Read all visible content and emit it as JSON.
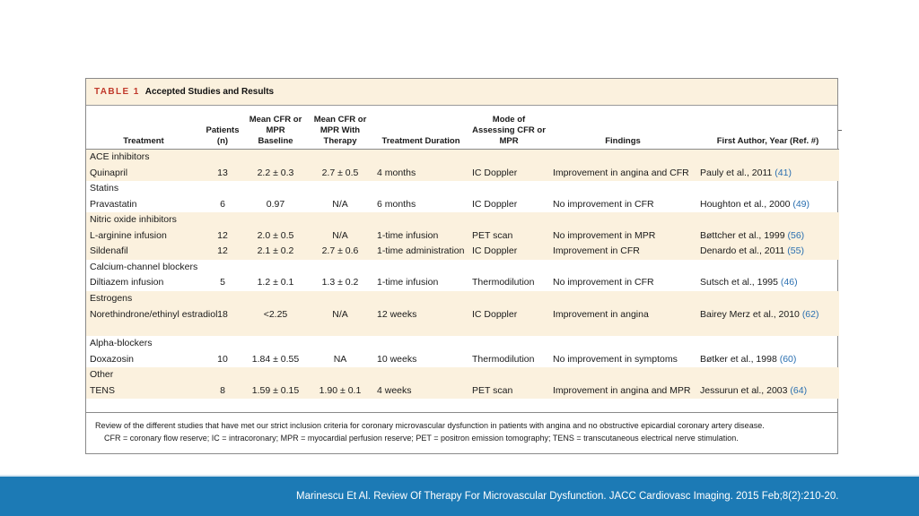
{
  "table": {
    "label": "TABLE 1",
    "title": "Accepted Studies and Results",
    "headers": {
      "treatment": "Treatment",
      "patients": "Patients (n)",
      "cfr_baseline": "Mean CFR or MPR Baseline",
      "cfr_therapy": "Mean CFR or MPR With Therapy",
      "duration": "Treatment Duration",
      "mode": "Mode of Assessing CFR or MPR",
      "findings": "Findings",
      "author": "First Author, Year (Ref. #)"
    },
    "groups": [
      {
        "name": "ACE inhibitors",
        "rows": [
          {
            "treatment": "Quinapril",
            "patients": "13",
            "baseline": "2.2 ± 0.3",
            "therapy": "2.7 ± 0.5",
            "duration": "4 months",
            "mode": "IC Doppler",
            "findings": "Improvement in angina and CFR",
            "author": "Pauly et al., 2011",
            "ref": "(41)"
          }
        ]
      },
      {
        "name": "Statins",
        "rows": [
          {
            "treatment": "Pravastatin",
            "patients": "6",
            "baseline": "0.97",
            "therapy": "N/A",
            "duration": "6 months",
            "mode": "IC Doppler",
            "findings": "No improvement in CFR",
            "author": "Houghton et al., 2000",
            "ref": "(49)"
          }
        ]
      },
      {
        "name": "Nitric oxide inhibitors",
        "rows": [
          {
            "treatment": "L-arginine infusion",
            "patients": "12",
            "baseline": "2.0 ± 0.5",
            "therapy": "N/A",
            "duration": "1-time infusion",
            "mode": "PET scan",
            "findings": "No improvement in MPR",
            "author": "Bøttcher et al., 1999",
            "ref": "(56)"
          },
          {
            "treatment": "Sildenafil",
            "patients": "12",
            "baseline": "2.1 ± 0.2",
            "therapy": "2.7 ± 0.6",
            "duration": "1-time administration",
            "mode": "IC Doppler",
            "findings": "Improvement in CFR",
            "author": "Denardo et al., 2011",
            "ref": "(55)"
          }
        ]
      },
      {
        "name": "Calcium-channel blockers",
        "rows": [
          {
            "treatment": "Diltiazem infusion",
            "patients": "5",
            "baseline": "1.2 ± 0.1",
            "therapy": "1.3 ± 0.2",
            "duration": "1-time infusion",
            "mode": "Thermodilution",
            "findings": "No improvement in CFR",
            "author": "Sutsch et al., 1995",
            "ref": "(46)"
          }
        ]
      },
      {
        "name": "Estrogens",
        "rows": [
          {
            "treatment": "Norethindrone/ethinyl estradiol",
            "patients": "18",
            "baseline": "<2.25",
            "therapy": "N/A",
            "duration": "12 weeks",
            "mode": "IC Doppler",
            "findings": "Improvement in angina",
            "author": "Bairey Merz et al., 2010",
            "ref": "(62)"
          }
        ]
      },
      {
        "name": "Alpha-blockers",
        "rows": [
          {
            "treatment": "Doxazosin",
            "patients": "10",
            "baseline": "1.84 ± 0.55",
            "therapy": "NA",
            "duration": "10 weeks",
            "mode": "Thermodilution",
            "findings": "No improvement in symptoms",
            "author": "Bøtker et al., 1998",
            "ref": "(60)"
          }
        ]
      },
      {
        "name": "Other",
        "rows": [
          {
            "treatment": "TENS",
            "patients": "8",
            "baseline": "1.59 ± 0.15",
            "therapy": "1.90 ± 0.1",
            "duration": "4 weeks",
            "mode": "PET scan",
            "findings": "Improvement in angina and MPR",
            "author": "Jessurun et al., 2003",
            "ref": "(64)"
          }
        ]
      }
    ],
    "footnote1": "Review of the different studies that have met our strict inclusion criteria for coronary microvascular dysfunction in patients with angina and no obstructive epicardial coronary artery disease.",
    "footnote2": "CFR = coronary flow reserve; IC = intracoronary; MPR = myocardial perfusion reserve; PET = positron emission tomography; TENS = transcutaneous electrical nerve stimulation."
  },
  "citation": "Marinescu Et Al. Review Of Therapy For Microvascular Dysfunction. JACC Cardiovasc Imaging. 2015 Feb;8(2):210-20.",
  "colors": {
    "band": "#fbf1de",
    "label": "#c0392b",
    "ref": "#2a6fb0",
    "bottom_bar": "#1c7ab5"
  }
}
